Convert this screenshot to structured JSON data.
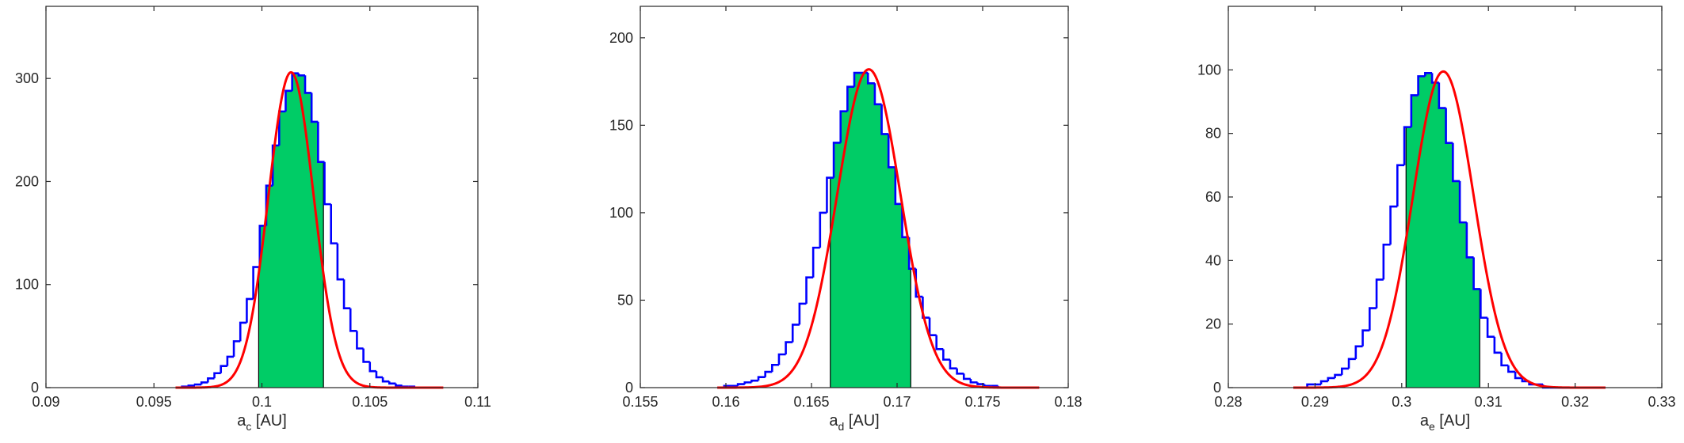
{
  "chart_data": [
    {
      "type": "bar",
      "xlabel": {
        "base": "a",
        "sub": "c",
        "unit": " [AU]"
      },
      "xlim": [
        0.09,
        0.11
      ],
      "ylim": [
        0,
        370
      ],
      "xticks": [
        0.09,
        0.095,
        0.1,
        0.105,
        0.11
      ],
      "xtick_labels": [
        "0.09",
        "0.095",
        "0.1",
        "0.105",
        "0.11"
      ],
      "yticks": [
        0,
        100,
        200,
        300
      ],
      "ytick_labels": [
        "0",
        "100",
        "200",
        "300"
      ],
      "hist": {
        "start": 0.096,
        "bin_width": 0.0003,
        "values": [
          0,
          1,
          2,
          3,
          5,
          9,
          14,
          21,
          30,
          45,
          63,
          86,
          117,
          157,
          196,
          235,
          268,
          288,
          305,
          303,
          286,
          258,
          219,
          178,
          140,
          105,
          77,
          55,
          38,
          25,
          16,
          10,
          6,
          4,
          2,
          1,
          1,
          0,
          0,
          0
        ]
      },
      "fit_curve": {
        "type": "gaussian",
        "amplitude": 306,
        "mean": 0.10135,
        "sigma": 0.00105,
        "range": [
          0.096,
          0.1084
        ]
      },
      "shaded_interval": [
        0.09985,
        0.10285
      ],
      "colors": {
        "histogram": "#0000ff",
        "fit": "#ff0000",
        "shade": "#00cc66"
      }
    },
    {
      "type": "bar",
      "xlabel": {
        "base": "a",
        "sub": "d",
        "unit": " [AU]"
      },
      "xlim": [
        0.155,
        0.18
      ],
      "ylim": [
        0,
        218
      ],
      "xticks": [
        0.155,
        0.16,
        0.165,
        0.17,
        0.175,
        0.18
      ],
      "xtick_labels": [
        "0.155",
        "0.16",
        "0.165",
        "0.17",
        "0.175",
        "0.18"
      ],
      "yticks": [
        0,
        50,
        100,
        150,
        200
      ],
      "ytick_labels": [
        "0",
        "50",
        "100",
        "150",
        "200"
      ],
      "hist": {
        "start": 0.1595,
        "bin_width": 0.0004,
        "values": [
          0,
          1,
          1,
          2,
          3,
          4,
          6,
          9,
          13,
          19,
          26,
          36,
          48,
          63,
          80,
          100,
          120,
          140,
          158,
          172,
          180,
          180,
          174,
          162,
          145,
          126,
          105,
          86,
          68,
          52,
          40,
          30,
          22,
          16,
          11,
          8,
          5,
          3,
          2,
          1,
          1,
          0,
          0,
          0,
          0,
          0,
          0
        ]
      },
      "fit_curve": {
        "type": "gaussian",
        "amplitude": 182,
        "mean": 0.16835,
        "sigma": 0.00185,
        "range": [
          0.1595,
          0.1783
        ]
      },
      "shaded_interval": [
        0.1661,
        0.1708
      ],
      "colors": {
        "histogram": "#0000ff",
        "fit": "#ff0000",
        "shade": "#00cc66"
      }
    },
    {
      "type": "bar",
      "xlabel": {
        "base": "a",
        "sub": "e",
        "unit": " [AU]"
      },
      "xlim": [
        0.28,
        0.33
      ],
      "ylim": [
        0,
        120
      ],
      "xticks": [
        0.28,
        0.29,
        0.3,
        0.31,
        0.32,
        0.33
      ],
      "xtick_labels": [
        "0.28",
        "0.29",
        "0.3",
        "0.31",
        "0.32",
        "0.33"
      ],
      "yticks": [
        0,
        20,
        40,
        60,
        80,
        100
      ],
      "ytick_labels": [
        "0",
        "20",
        "40",
        "60",
        "80",
        "100"
      ],
      "hist": {
        "start": 0.2875,
        "bin_width": 0.0008,
        "values": [
          0,
          0,
          1,
          1,
          2,
          3,
          4,
          6,
          9,
          13,
          18,
          25,
          34,
          45,
          57,
          70,
          82,
          92,
          98,
          99,
          96,
          88,
          77,
          65,
          52,
          41,
          31,
          22,
          16,
          11,
          7,
          5,
          3,
          2,
          1,
          1,
          0,
          0,
          0,
          0,
          0,
          0,
          0,
          0,
          0
        ]
      },
      "fit_curve": {
        "type": "gaussian",
        "amplitude": 99.5,
        "mean": 0.3048,
        "sigma": 0.0035,
        "range": [
          0.2875,
          0.3235
        ]
      },
      "shaded_interval": [
        0.3005,
        0.309
      ],
      "colors": {
        "histogram": "#0000ff",
        "fit": "#ff0000",
        "shade": "#00cc66"
      }
    }
  ]
}
